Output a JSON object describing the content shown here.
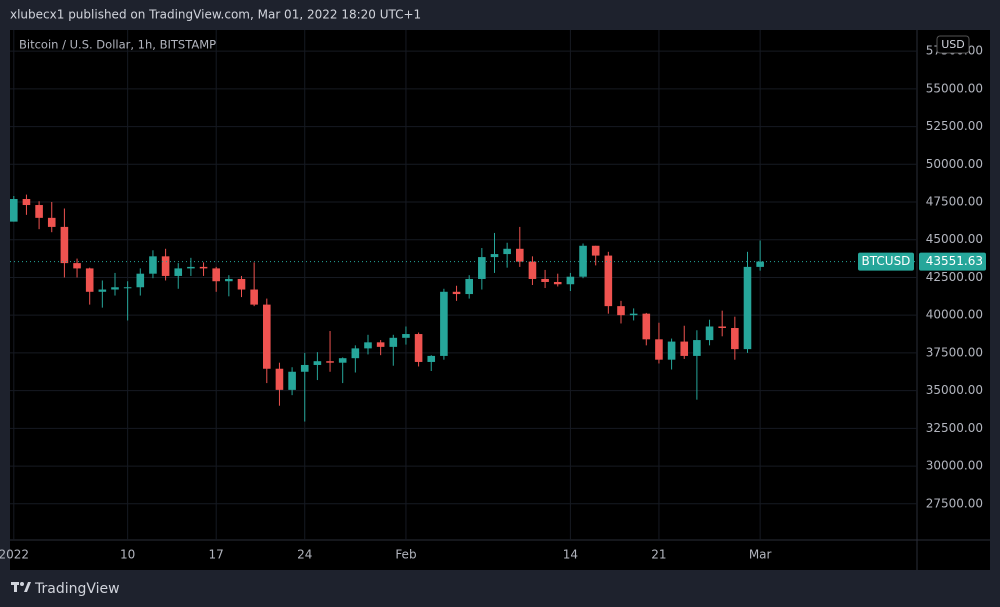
{
  "chart_data": {
    "type": "candlestick",
    "header": "xlubecx1 published on TradingView.com, Mar 01, 2022 18:20 UTC+1",
    "title": "Bitcoin / U.S. Dollar, 1h, BITSTAMP",
    "currency": "USD",
    "brand": "TradingView",
    "up_color": "#26a69a",
    "down_color": "#ef5350",
    "grid": true,
    "last_price": {
      "symbol": "BTCUSD",
      "value": 43551.63
    },
    "xlim": [
      -0.3,
      71.4
    ],
    "xticks": [
      {
        "value": 0,
        "label": "2022"
      },
      {
        "value": 9,
        "label": "10"
      },
      {
        "value": 16,
        "label": "17"
      },
      {
        "value": 23,
        "label": "24"
      },
      {
        "value": 31,
        "label": "Feb"
      },
      {
        "value": 44,
        "label": "14"
      },
      {
        "value": 51,
        "label": "21"
      },
      {
        "value": 59,
        "label": "Mar"
      }
    ],
    "ylim": [
      25100,
      58900
    ],
    "yticks": [
      {
        "value": 27500,
        "label": "27500.00"
      },
      {
        "value": 30000,
        "label": "30000.00"
      },
      {
        "value": 32500,
        "label": "32500.00"
      },
      {
        "value": 35000,
        "label": "35000.00"
      },
      {
        "value": 37500,
        "label": "37500.00"
      },
      {
        "value": 40000,
        "label": "40000.00"
      },
      {
        "value": 42500,
        "label": "42500.00"
      },
      {
        "value": 45000,
        "label": "45000.00"
      },
      {
        "value": 47500,
        "label": "47500.00"
      },
      {
        "value": 50000,
        "label": "50000.00"
      },
      {
        "value": 52500,
        "label": "52500.00"
      },
      {
        "value": 55000,
        "label": "55000.00"
      },
      {
        "value": 57500,
        "label": "57500.00"
      }
    ],
    "x": [
      0,
      1,
      2,
      3,
      4,
      5,
      6,
      7,
      8,
      9,
      10,
      11,
      12,
      13,
      14,
      15,
      16,
      17,
      18,
      19,
      20,
      21,
      22,
      23,
      24,
      25,
      26,
      27,
      28,
      29,
      30,
      31,
      32,
      33,
      34,
      35,
      36,
      37,
      38,
      39,
      40,
      41,
      42,
      43,
      44,
      45,
      46,
      47,
      48,
      49,
      50,
      51,
      52,
      53,
      54,
      55,
      56,
      57,
      58,
      59
    ],
    "open": [
      46200,
      47700,
      47300,
      46450,
      45850,
      43450,
      43100,
      41550,
      41700,
      41850,
      41850,
      42750,
      43900,
      42600,
      43100,
      43200,
      43100,
      42250,
      42400,
      41700,
      40700,
      36450,
      35050,
      36250,
      36700,
      36950,
      36850,
      37150,
      37800,
      38200,
      37900,
      38500,
      38750,
      36900,
      37300,
      41550,
      41400,
      42400,
      43850,
      44050,
      44400,
      43550,
      42400,
      42200,
      42050,
      42550,
      44600,
      43950,
      40600,
      40000,
      40100,
      38400,
      37050,
      38250,
      37300,
      38350,
      39250,
      39150,
      37750,
      43200
    ],
    "high": [
      47900,
      47990,
      47550,
      47500,
      47070,
      43750,
      43150,
      42300,
      42800,
      42250,
      43100,
      44300,
      44400,
      43450,
      43800,
      43500,
      43200,
      42650,
      42600,
      43500,
      41100,
      36850,
      36550,
      37500,
      37550,
      38950,
      37200,
      38000,
      38700,
      38350,
      38700,
      39250,
      38850,
      37350,
      41750,
      41950,
      42650,
      44450,
      45450,
      44800,
      45850,
      43900,
      43000,
      42750,
      42800,
      44750,
      44600,
      44200,
      40950,
      40450,
      40150,
      39500,
      38450,
      39300,
      39000,
      39700,
      40300,
      39900,
      44200,
      44950
    ],
    "low": [
      46200,
      46650,
      45700,
      45500,
      42500,
      42500,
      40700,
      40500,
      41300,
      39650,
      41300,
      42450,
      42300,
      41750,
      42600,
      42600,
      41550,
      41250,
      41200,
      40600,
      35500,
      34000,
      34700,
      32950,
      35700,
      36250,
      35500,
      36200,
      37400,
      37350,
      36650,
      38050,
      36600,
      36300,
      37050,
      40950,
      41100,
      41700,
      42800,
      43150,
      43200,
      42000,
      41800,
      41900,
      41600,
      42450,
      43300,
      40100,
      39450,
      39650,
      38000,
      36800,
      36400,
      37100,
      34400,
      38000,
      38600,
      37050,
      37500,
      42950
    ],
    "close": [
      47700,
      47300,
      46450,
      45850,
      43450,
      43100,
      41550,
      41700,
      41850,
      41850,
      42750,
      43900,
      42600,
      43100,
      43200,
      43100,
      42250,
      42400,
      41700,
      40700,
      36450,
      35050,
      36250,
      36700,
      36950,
      36850,
      37150,
      37800,
      38200,
      37900,
      38500,
      38750,
      36900,
      37300,
      41550,
      41400,
      42400,
      43850,
      44050,
      44400,
      43550,
      42400,
      42200,
      42050,
      42550,
      44600,
      43950,
      40600,
      40000,
      40100,
      38400,
      37050,
      38250,
      37300,
      38350,
      39250,
      39150,
      37750,
      43200,
      43551.63
    ]
  }
}
